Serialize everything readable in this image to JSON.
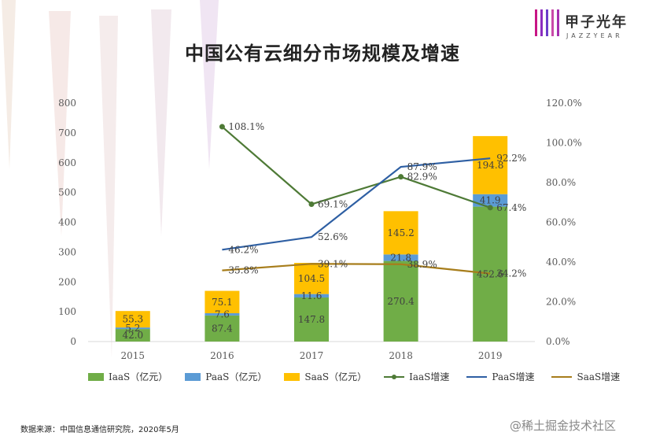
{
  "brand": {
    "cn": "甲子光年",
    "en": "JAZZYEAR"
  },
  "source_note": "数据来源：中国信息通信研究院，2020年5月",
  "watermark": "@稀土掘金技术社区",
  "colors": {
    "iaas": "#70AD47",
    "paas": "#5B9BD5",
    "saas": "#FFC000",
    "iaas_growth": "#4E7A36",
    "paas_growth": "#2E5FA3",
    "saas_growth": "#A77D1B"
  },
  "chart_data": {
    "type": "bar",
    "stacked": true,
    "title": "中国公有云细分市场规模及增速",
    "categories": [
      "2015",
      "2016",
      "2017",
      "2018",
      "2019"
    ],
    "series": [
      {
        "name": "IaaS（亿元）",
        "values": [
          42.0,
          87.4,
          147.8,
          270.4,
          452.6
        ],
        "color": "#70AD47"
      },
      {
        "name": "PaaS（亿元）",
        "values": [
          5.2,
          7.6,
          11.6,
          21.8,
          41.9
        ],
        "color": "#5B9BD5"
      },
      {
        "name": "SaaS（亿元）",
        "values": [
          55.3,
          75.1,
          104.5,
          145.2,
          194.8
        ],
        "color": "#FFC000"
      }
    ],
    "bar_labels": [
      [
        "42.0",
        "87.4",
        "147.8",
        "270.4",
        "452.6"
      ],
      [
        "5.2",
        "7.6",
        "11.6",
        "21.8",
        "41.9"
      ],
      [
        "55.3",
        "75.1",
        "104.5",
        "145.2",
        "194.8"
      ]
    ],
    "line_series": [
      {
        "name": "IaaS增速",
        "values": [
          null,
          108.1,
          69.1,
          82.9,
          67.4
        ],
        "labels": [
          "",
          "108.1%",
          "69.1%",
          "82.9%",
          "67.4%"
        ],
        "color": "#4E7A36",
        "markers": true
      },
      {
        "name": "PaaS增速",
        "values": [
          null,
          46.2,
          52.6,
          87.9,
          92.2
        ],
        "labels": [
          "",
          "46.2%",
          "52.6%",
          "87.9%",
          "92.2%"
        ],
        "color": "#2E5FA3",
        "markers": false
      },
      {
        "name": "SaaS增速",
        "values": [
          null,
          35.8,
          39.1,
          38.9,
          34.2
        ],
        "labels": [
          "",
          "35.8%",
          "39.1%",
          "38.9%",
          "34.2%"
        ],
        "color": "#A77D1B",
        "markers": false
      }
    ],
    "y_left": {
      "min": 0,
      "max": 800,
      "ticks": [
        "0",
        "100",
        "200",
        "300",
        "400",
        "500",
        "600",
        "700",
        "800"
      ]
    },
    "y_right": {
      "min": 0,
      "max": 120,
      "ticks": [
        "0.0%",
        "20.0%",
        "40.0%",
        "60.0%",
        "80.0%",
        "100.0%",
        "120.0%"
      ]
    },
    "legend": [
      "IaaS（亿元）",
      "PaaS（亿元）",
      "SaaS（亿元）",
      "IaaS增速",
      "PaaS增速",
      "SaaS增速"
    ]
  }
}
